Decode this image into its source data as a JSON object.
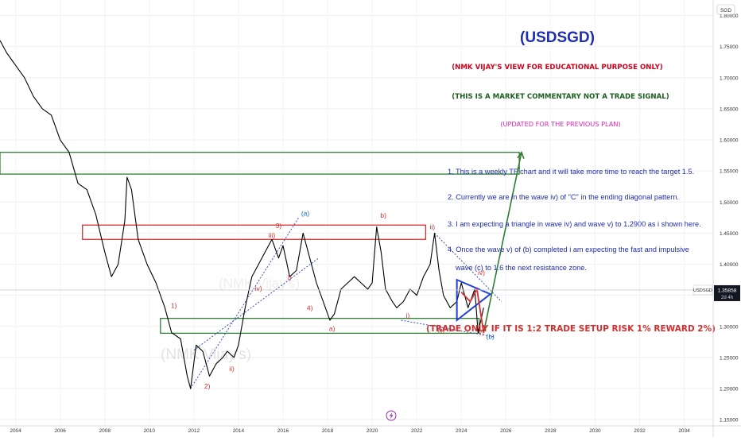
{
  "symbol_badge": "SGD",
  "chart_data": {
    "type": "line",
    "title": "(USDSGD)",
    "subtitle_lines": [
      {
        "text": "(NMK VIJAY'S VIEW FOR EDUCATIONAL PURPOSE ONLY)",
        "color": "#d0021b"
      },
      {
        "text": "(THIS IS A MARKET COMMENTARY NOT A TRADE SIGNAL)",
        "color": "#1b5e20"
      },
      {
        "text": "(UPDATED FOR THE PREVIOUS PLAN)",
        "color": "#e91ebb"
      }
    ],
    "notes": [
      "1. This is a weekly TF chart and it will take more time  to reach the target 1.5.",
      "2. Currently we are in the wave iv) of \"C\" in the ending diagonal pattern.",
      "3. I am expecting a triangle in wave iv) and wave v) to 1.2900 as i shown here.",
      "4. Once the wave v) of (b) completed i am expecting the fast and impulsive",
      "wave (c) to 1.6 the next resistance zone."
    ],
    "trade_note": "(TRADE ONLY IF IT IS 1:2 TRADE SETUP RISK 1% REWARD 2%)",
    "watermark": "(NMK Vijay's)",
    "x_ticks": [
      "2004",
      "2006",
      "2008",
      "2010",
      "2012",
      "2014",
      "2016",
      "2018",
      "2020",
      "2022",
      "2024",
      "2026",
      "2028",
      "2030",
      "2032",
      "2034"
    ],
    "xlim": [
      2003.3,
      2035.3
    ],
    "y_ticks": [
      "1.15000",
      "1.20000",
      "1.25000",
      "1.30000",
      "1.35000",
      "1.40000",
      "1.45000",
      "1.50000",
      "1.55000",
      "1.60000",
      "1.65000",
      "1.70000",
      "1.75000",
      "1.80000"
    ],
    "ylim": [
      1.14,
      1.825
    ],
    "log_scale": false,
    "grid": true,
    "last_price": {
      "symbol": "USDSGD",
      "value": "1.35858",
      "countdown": "2d 4h",
      "level": 1.3586
    },
    "series": [
      {
        "type": "price",
        "color": "#000000",
        "x": [
          2003.3,
          2003.6,
          2004.0,
          2004.4,
          2004.8,
          2005.2,
          2005.6,
          2006.0,
          2006.4,
          2006.8,
          2007.2,
          2007.6,
          2008.0,
          2008.3,
          2008.6,
          2008.9,
          2009.0,
          2009.2,
          2009.5,
          2009.9,
          2010.3,
          2010.7,
          2011.0,
          2011.4,
          2011.7,
          2011.85,
          2012.1,
          2012.4,
          2012.7,
          2013.0,
          2013.3,
          2013.5,
          2013.8,
          2014.0,
          2014.3,
          2014.6,
          2014.9,
          2015.2,
          2015.5,
          2015.8,
          2016.0,
          2016.3,
          2016.6,
          2016.9,
          2017.2,
          2017.5,
          2017.8,
          2018.1,
          2018.3,
          2018.6,
          2018.9,
          2019.2,
          2019.5,
          2019.8,
          2020.0,
          2020.2,
          2020.4,
          2020.6,
          2020.9,
          2021.1,
          2021.4,
          2021.7,
          2022.0,
          2022.3,
          2022.6,
          2022.8,
          2023.0,
          2023.2,
          2023.5,
          2023.8,
          2024.0,
          2024.3,
          2024.6,
          2024.75,
          2025.0
        ],
        "y": [
          1.76,
          1.74,
          1.72,
          1.7,
          1.67,
          1.65,
          1.64,
          1.6,
          1.58,
          1.53,
          1.52,
          1.48,
          1.42,
          1.38,
          1.4,
          1.47,
          1.54,
          1.52,
          1.44,
          1.4,
          1.37,
          1.33,
          1.29,
          1.28,
          1.22,
          1.2,
          1.27,
          1.26,
          1.22,
          1.24,
          1.25,
          1.26,
          1.25,
          1.27,
          1.33,
          1.38,
          1.4,
          1.42,
          1.44,
          1.41,
          1.43,
          1.38,
          1.39,
          1.45,
          1.41,
          1.37,
          1.34,
          1.31,
          1.32,
          1.36,
          1.37,
          1.38,
          1.37,
          1.36,
          1.37,
          1.46,
          1.42,
          1.36,
          1.34,
          1.33,
          1.34,
          1.36,
          1.35,
          1.38,
          1.4,
          1.45,
          1.39,
          1.35,
          1.33,
          1.34,
          1.37,
          1.33,
          1.36,
          1.29,
          1.33
        ]
      },
      {
        "type": "projection",
        "color": "#2e7d32",
        "x": [
          2025.0,
          2026.7
        ],
        "y": [
          1.29,
          1.58
        ]
      }
    ],
    "zones": [
      {
        "color": "#2e7d32",
        "x": [
          2003.3,
          2026.6
        ],
        "y": [
          1.545,
          1.58
        ]
      },
      {
        "color": "#d32f2f",
        "x": [
          2007.0,
          2022.4
        ],
        "y": [
          1.44,
          1.463
        ]
      },
      {
        "color": "#2e7d32",
        "x": [
          2010.5,
          2024.8
        ],
        "y": [
          1.289,
          1.313
        ]
      }
    ],
    "annotations": [
      {
        "text": "1)",
        "x": 2011.1,
        "y": 1.33,
        "color": "#d32f2f"
      },
      {
        "text": "2)",
        "x": 2012.6,
        "y": 1.2,
        "color": "#d32f2f"
      },
      {
        "text": "3)",
        "x": 2015.8,
        "y": 1.458,
        "color": "#d32f2f"
      },
      {
        "text": "4)",
        "x": 2017.2,
        "y": 1.326,
        "color": "#d32f2f"
      },
      {
        "text": "i)",
        "x": 2016.3,
        "y": 1.375,
        "color": "#d32f2f"
      },
      {
        "text": "ii)",
        "x": 2013.7,
        "y": 1.228,
        "color": "#d32f2f"
      },
      {
        "text": "iii)",
        "x": 2015.5,
        "y": 1.443,
        "color": "#d32f2f"
      },
      {
        "text": "iv)",
        "x": 2014.9,
        "y": 1.357,
        "color": "#d32f2f"
      },
      {
        "text": "a)",
        "x": 2018.2,
        "y": 1.293,
        "color": "#d32f2f"
      },
      {
        "text": "b)",
        "x": 2020.5,
        "y": 1.475,
        "color": "#d32f2f"
      },
      {
        "text": "i)",
        "x": 2021.6,
        "y": 1.314,
        "color": "#d32f2f"
      },
      {
        "text": "ii)",
        "x": 2022.7,
        "y": 1.456,
        "color": "#d32f2f"
      },
      {
        "text": "iii)",
        "x": 2023.1,
        "y": 1.29,
        "color": "#d32f2f"
      },
      {
        "text": "iv)",
        "x": 2024.9,
        "y": 1.383,
        "color": "#d32f2f"
      },
      {
        "text": "v)",
        "x": 2024.9,
        "y": 1.287,
        "color": "#d32f2f"
      },
      {
        "text": "(a)",
        "x": 2017.0,
        "y": 1.478,
        "color": "#1565c0"
      },
      {
        "text": "(b)",
        "x": 2025.3,
        "y": 1.28,
        "color": "#1565c0"
      }
    ]
  }
}
